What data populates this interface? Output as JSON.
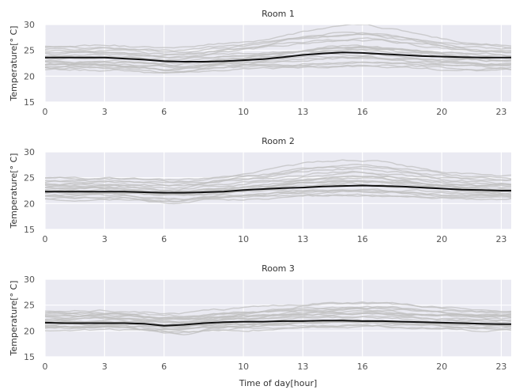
{
  "chart_data": [
    {
      "type": "line",
      "title": "Room 1",
      "xlabel": "",
      "ylabel": "Temperature[° C]",
      "xlim": [
        0,
        23.5
      ],
      "ylim": [
        15,
        30
      ],
      "xticks": [
        0,
        3,
        6,
        10,
        13,
        16,
        20,
        23
      ],
      "yticks": [
        15,
        20,
        25,
        30
      ],
      "grid": true,
      "background": "#eaeaf2",
      "mean_color": "#111111",
      "series_color": "#bfbfbf",
      "x": [
        0,
        1,
        2,
        3,
        4,
        5,
        6,
        7,
        8,
        9,
        10,
        11,
        12,
        13,
        14,
        15,
        16,
        17,
        18,
        19,
        20,
        21,
        22,
        23,
        23.5
      ],
      "mean": [
        23.6,
        23.6,
        23.6,
        23.6,
        23.4,
        23.2,
        22.9,
        22.8,
        22.8,
        22.9,
        23.1,
        23.3,
        23.7,
        24.1,
        24.4,
        24.6,
        24.5,
        24.3,
        24.1,
        23.9,
        23.8,
        23.7,
        23.6,
        23.6,
        23.6
      ],
      "series_mid": [
        23.0,
        24.3,
        22.2,
        25.8,
        21.5,
        24.9,
        22.7,
        23.8,
        21.9,
        25.2,
        22.4,
        24.6,
        21.2,
        23.3,
        25.5,
        22.9,
        24.0,
        21.7,
        23.6,
        22.1
      ],
      "series_bump": [
        0.8,
        2.8,
        1.2,
        3.8,
        0.5,
        2.2,
        3.2,
        1.6,
        0.9,
        2.6,
        1.9,
        3.5,
        0.6,
        1.4,
        3.0,
        2.4,
        1.1,
        0.7,
        2.0,
        1.7
      ]
    },
    {
      "type": "line",
      "title": "Room 2",
      "xlabel": "",
      "ylabel": "Temperature[° C]",
      "xlim": [
        0,
        23.5
      ],
      "ylim": [
        15,
        30
      ],
      "xticks": [
        0,
        3,
        6,
        10,
        13,
        16,
        20,
        23
      ],
      "yticks": [
        15,
        20,
        25,
        30
      ],
      "grid": true,
      "background": "#eaeaf2",
      "mean_color": "#111111",
      "series_color": "#bfbfbf",
      "x": [
        0,
        1,
        2,
        3,
        4,
        5,
        6,
        7,
        8,
        9,
        10,
        11,
        12,
        13,
        14,
        15,
        16,
        17,
        18,
        19,
        20,
        21,
        22,
        23,
        23.5
      ],
      "mean": [
        22.3,
        22.3,
        22.3,
        22.3,
        22.3,
        22.2,
        22.1,
        22.1,
        22.2,
        22.3,
        22.6,
        22.8,
        23.0,
        23.1,
        23.3,
        23.4,
        23.5,
        23.4,
        23.3,
        23.1,
        22.9,
        22.7,
        22.6,
        22.5,
        22.5
      ],
      "series_mid": [
        22.0,
        23.4,
        21.3,
        25.0,
        20.8,
        24.2,
        22.5,
        23.0,
        21.6,
        24.6,
        22.8,
        23.8,
        21.0,
        22.3,
        24.9,
        22.6,
        23.2,
        21.4,
        23.6,
        22.2
      ],
      "series_bump": [
        0.6,
        2.4,
        1.3,
        3.2,
        0.7,
        2.0,
        2.8,
        1.5,
        1.0,
        2.2,
        1.7,
        3.0,
        0.8,
        1.2,
        2.6,
        2.1,
        1.1,
        0.9,
        1.8,
        1.4
      ]
    },
    {
      "type": "line",
      "title": "Room 3",
      "xlabel": "Time of day[hour]",
      "ylabel": "Temperature[° C]",
      "xlim": [
        0,
        23.5
      ],
      "ylim": [
        15,
        30
      ],
      "xticks": [
        0,
        3,
        6,
        10,
        13,
        16,
        20,
        23
      ],
      "yticks": [
        15,
        20,
        25,
        30
      ],
      "grid": true,
      "background": "#eaeaf2",
      "mean_color": "#111111",
      "series_color": "#bfbfbf",
      "x": [
        0,
        1,
        2,
        3,
        4,
        5,
        6,
        7,
        8,
        9,
        10,
        11,
        12,
        13,
        14,
        15,
        16,
        17,
        18,
        19,
        20,
        21,
        22,
        23,
        23.5
      ],
      "mean": [
        21.6,
        21.5,
        21.5,
        21.5,
        21.5,
        21.4,
        21.0,
        21.2,
        21.5,
        21.7,
        21.8,
        21.8,
        21.9,
        21.9,
        22.0,
        22.0,
        21.9,
        21.9,
        21.8,
        21.7,
        21.6,
        21.5,
        21.4,
        21.3,
        21.3
      ],
      "series_mid": [
        21.4,
        22.8,
        20.8,
        23.9,
        20.2,
        22.4,
        21.9,
        23.2,
        20.6,
        22.6,
        21.2,
        23.6,
        20.4,
        22.0,
        23.4,
        21.6,
        22.9,
        20.9,
        22.2,
        21.0
      ],
      "series_bump": [
        0.5,
        1.6,
        0.9,
        1.8,
        0.4,
        1.2,
        1.5,
        1.0,
        0.6,
        1.3,
        0.8,
        1.7,
        0.5,
        0.9,
        1.4,
        1.1,
        0.7,
        0.6,
        1.2,
        0.8
      ]
    }
  ]
}
